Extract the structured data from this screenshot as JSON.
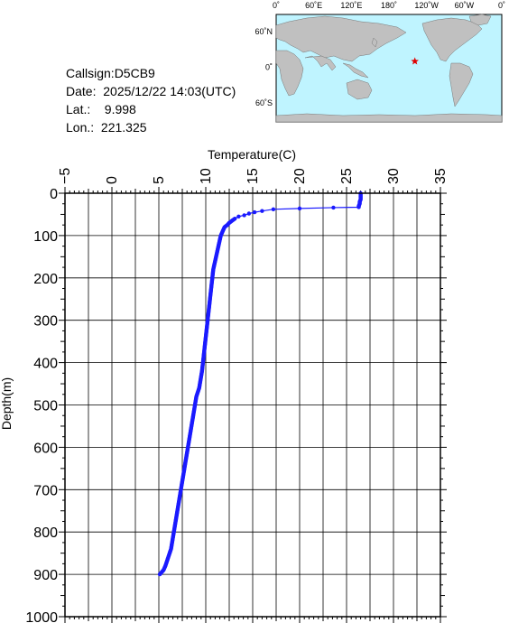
{
  "station": {
    "callsign": "Callsign:D5CB9",
    "date": "Date:  2025/12/22 14:03(UTC)",
    "lat": "Lat.:    9.998",
    "lon": "Lon.:  221.325"
  },
  "map": {
    "top_labels": [
      "0˚",
      "60˚E",
      "120˚E",
      "180˚",
      "120˚W",
      "60˚W",
      "0˚"
    ],
    "left_labels": [
      "60˚N",
      "0˚",
      "60˚S"
    ],
    "ocean_color": "#bff4ff",
    "land_color": "#c0c0c0",
    "marker_color": "#e00000",
    "marker_lon": 221.325,
    "marker_lat": 9.998
  },
  "chart_data": {
    "type": "line",
    "xlabel": "Temperature(C)",
    "ylabel": "Depth(m)",
    "xlim": [
      -5,
      35
    ],
    "ylim": [
      1000,
      0
    ],
    "xticks": [
      "-5",
      "0",
      "5",
      "10",
      "15",
      "20",
      "25",
      "30",
      "35"
    ],
    "yticks": [
      "0",
      "100",
      "200",
      "300",
      "400",
      "500",
      "600",
      "700",
      "800",
      "900",
      "1000"
    ],
    "grid": true,
    "line_color": "#1a1aff",
    "series": [
      {
        "temperature": [
          26.5,
          26.5,
          26.5,
          26.5,
          26.4,
          26.4,
          26.3,
          26.3,
          23.6,
          20.0,
          17.2,
          16.0,
          15.2,
          14.6,
          14.1,
          13.5,
          13.1,
          12.8,
          12.5,
          12.3,
          12.0,
          11.8,
          11.6,
          11.5,
          11.4,
          11.2,
          11.0,
          10.8,
          10.6,
          10.4,
          10.2,
          10.0,
          9.8,
          9.6,
          9.3,
          9.0,
          8.7,
          8.4,
          8.1,
          7.8,
          7.5,
          7.2,
          6.9,
          6.6,
          6.3,
          6.0,
          5.7,
          5.5,
          5.3,
          5.1
        ],
        "depth": [
          0,
          5,
          10,
          15,
          20,
          25,
          30,
          33,
          34,
          36,
          38,
          42,
          45,
          48,
          52,
          55,
          60,
          65,
          70,
          75,
          80,
          90,
          100,
          110,
          120,
          140,
          160,
          180,
          220,
          260,
          300,
          340,
          380,
          420,
          460,
          480,
          520,
          560,
          600,
          640,
          680,
          720,
          760,
          800,
          840,
          860,
          880,
          890,
          895,
          900
        ],
        "marker_depths": [
          0,
          5,
          10,
          15,
          20,
          25,
          30,
          33,
          34,
          36,
          38,
          42,
          45,
          48,
          52,
          55,
          60,
          65,
          70,
          75,
          80,
          90,
          100,
          110,
          120,
          140,
          160,
          180,
          220,
          260,
          300,
          340,
          380,
          420,
          460,
          480,
          520,
          560,
          600,
          640,
          680,
          720,
          760,
          800,
          840,
          860,
          880,
          890,
          895,
          900
        ]
      }
    ]
  }
}
